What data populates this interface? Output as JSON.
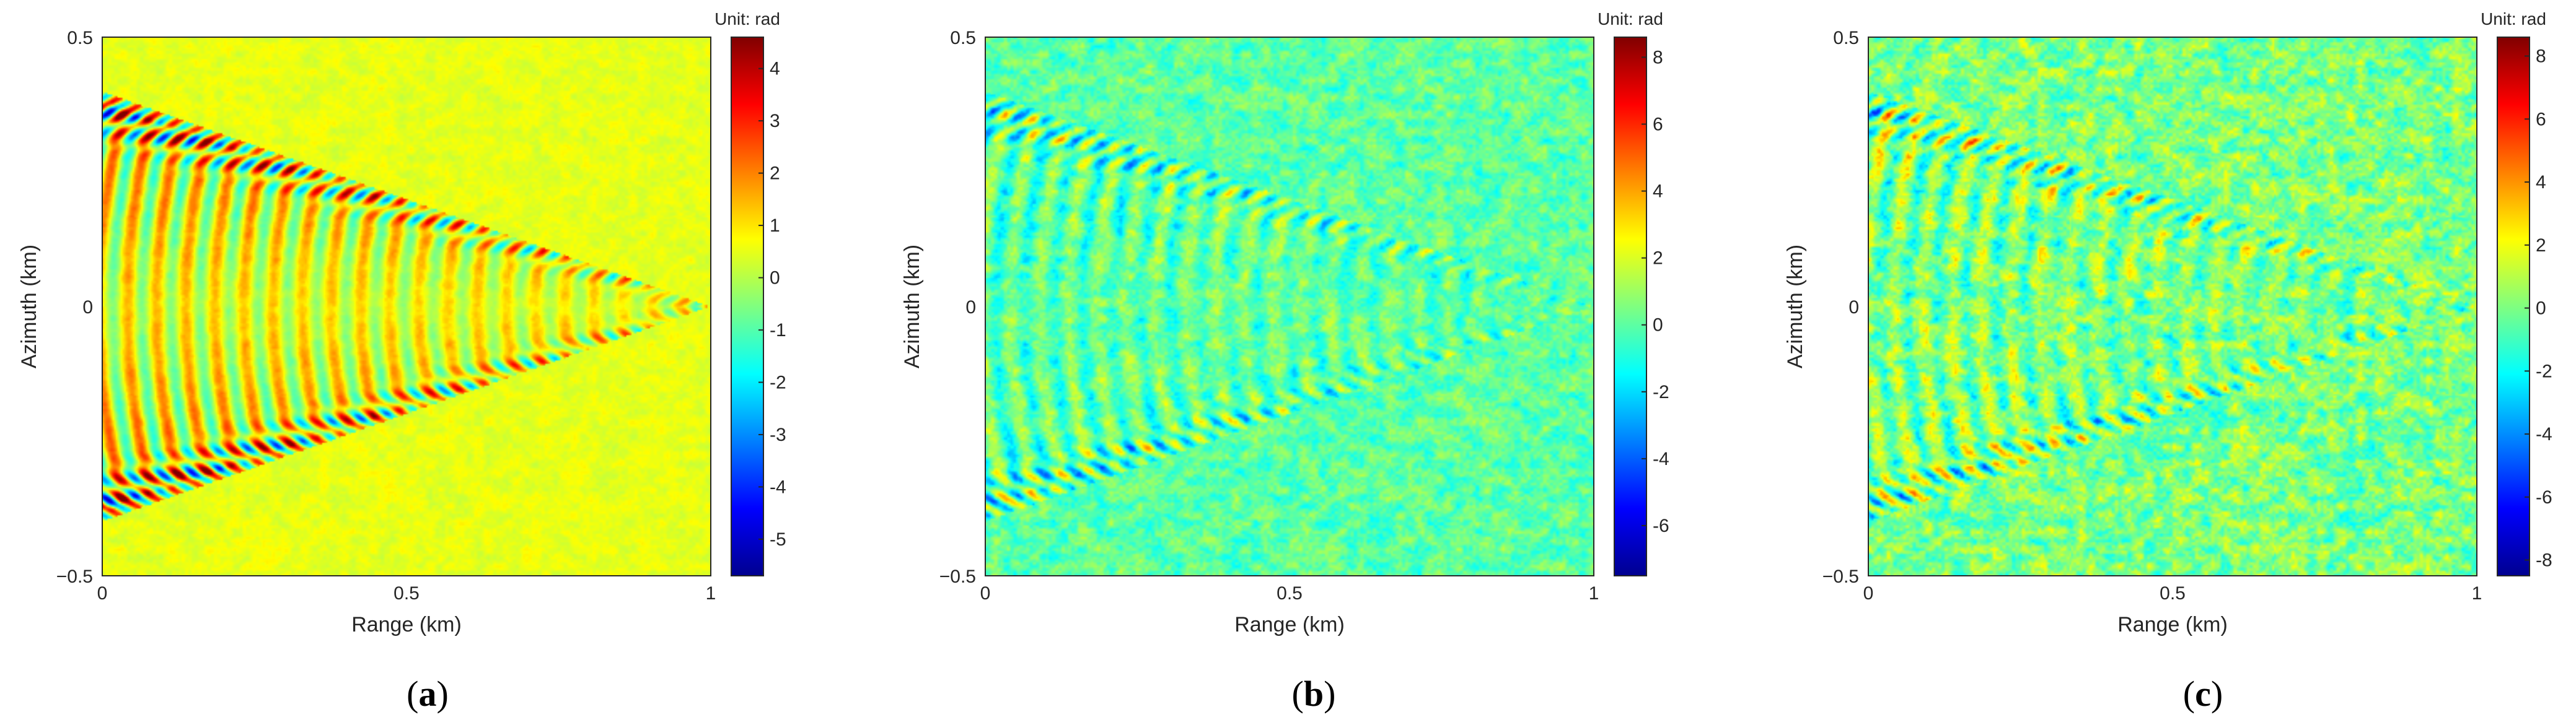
{
  "chart_data": [
    {
      "type": "heatmap",
      "panel_label": "a",
      "xlabel": "Range (km)",
      "ylabel": "Azimuth (km)",
      "xlim": [
        0,
        1
      ],
      "ylim": [
        -0.5,
        0.5
      ],
      "xticks": [
        "0",
        "0.5",
        "1"
      ],
      "yticks": [
        "0.5",
        "0",
        "−0.5"
      ],
      "colorbar": {
        "unit": "Unit: rad",
        "min": -5.7,
        "max": 4.6,
        "ticks": [
          "4",
          "3",
          "2",
          "1",
          "0",
          "-1",
          "-2",
          "-3",
          "-4",
          "-5"
        ],
        "tick_values": [
          4,
          3,
          2,
          1,
          0,
          -1,
          -2,
          -3,
          -4,
          -5
        ],
        "colormap": "jet"
      },
      "pattern": "Kelvin ship wake: V-shaped wedge with apex at range 1 km, azimuth 0; transverse and divergent waves of amplitude ~4 rad; background ~0.5 rad",
      "background_value": 0.5,
      "wake_amplitude": 4.2,
      "noise_level": 0.35
    },
    {
      "type": "heatmap",
      "panel_label": "b",
      "xlabel": "Range (km)",
      "ylabel": "Azimuth (km)",
      "xlim": [
        0,
        1
      ],
      "ylim": [
        -0.5,
        0.5
      ],
      "xticks": [
        "0",
        "0.5",
        "1"
      ],
      "yticks": [
        "0.5",
        "0",
        "−0.5"
      ],
      "colorbar": {
        "unit": "Unit: rad",
        "min": -7.5,
        "max": 8.6,
        "ticks": [
          "8",
          "6",
          "4",
          "2",
          "0",
          "-2",
          "-4",
          "-6"
        ],
        "tick_values": [
          8,
          6,
          4,
          2,
          0,
          -2,
          -4,
          -6
        ],
        "colormap": "jet"
      },
      "pattern": "Kelvin wake with added noise: V-shaped arms visible, apex at range 1 km; background ~0 rad",
      "background_value": 0.0,
      "wake_amplitude": 3.2,
      "noise_level": 1.5
    },
    {
      "type": "heatmap",
      "panel_label": "c",
      "xlabel": "Range (km)",
      "ylabel": "Azimuth (km)",
      "xlim": [
        0,
        1
      ],
      "ylim": [
        -0.5,
        0.5
      ],
      "xticks": [
        "0",
        "0.5",
        "1"
      ],
      "yticks": [
        "0.5",
        "0",
        "−0.5"
      ],
      "colorbar": {
        "unit": "Unit: rad",
        "min": -8.5,
        "max": 8.6,
        "ticks": [
          "8",
          "6",
          "4",
          "2",
          "0",
          "-2",
          "-4",
          "-6",
          "-8"
        ],
        "tick_values": [
          8,
          6,
          4,
          2,
          0,
          -2,
          -4,
          -6,
          -8
        ],
        "colormap": "jet"
      },
      "pattern": "Kelvin wake with stronger noise: V-shaped arms visible, strongest near range 0-0.3 km; background ~0 rad",
      "background_value": 0.0,
      "wake_amplitude": 3.6,
      "noise_level": 2.2
    }
  ],
  "captions": [
    "(a)",
    "(b)",
    "(c)"
  ]
}
